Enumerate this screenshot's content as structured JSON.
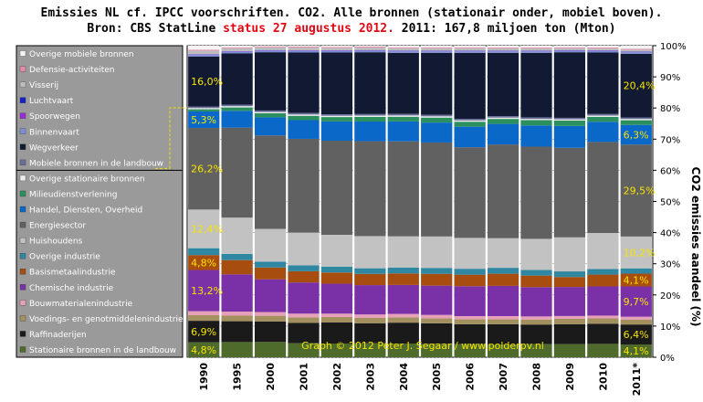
{
  "title": {
    "line1": "Emissies NL cf. IPCC voorschriften. CO2. Alle bronnen (stationair onder, mobiel boven).",
    "line2_prefix": "Bron: CBS StatLine",
    "line2_status": "status 27 augustus 2012.",
    "line2_suffix": "2011: 167,8 miljoen ton (Mton)"
  },
  "chart_data": {
    "type": "bar",
    "stacked": true,
    "normalized": true,
    "categories": [
      "1990",
      "1995",
      "2000",
      "2001",
      "2002",
      "2003",
      "2004",
      "2005",
      "2006",
      "2007",
      "2008",
      "2009",
      "2010",
      "2011*"
    ],
    "ylabel": "CO2 emissies aandeel (%)",
    "ylim": [
      0,
      100
    ],
    "yticks": [
      "0%",
      "10%",
      "20%",
      "30%",
      "40%",
      "50%",
      "60%",
      "70%",
      "80%",
      "90%",
      "100%"
    ],
    "legend_position": "left",
    "watermark": "Graph © 2012 Peter J. Segaar / www.polderpv.nl",
    "series": [
      {
        "name": "Stationaire bronnen in de landbouw",
        "color": "#4e6b2c",
        "values": [
          4.8,
          4.9,
          4.9,
          4.5,
          4.4,
          4.5,
          4.4,
          4.3,
          4.2,
          4.1,
          4.2,
          4.2,
          4.3,
          4.1
        ]
      },
      {
        "name": "Raffinaderijen",
        "color": "#1a1a1a",
        "values": [
          6.9,
          6.7,
          6.6,
          6.5,
          6.8,
          6.4,
          6.7,
          6.6,
          6.4,
          6.5,
          6.3,
          6.4,
          6.5,
          6.4
        ]
      },
      {
        "name": "Voedings- en genotmiddelenindustrie",
        "color": "#a3905f",
        "values": [
          1.8,
          1.8,
          1.8,
          1.8,
          1.7,
          1.7,
          1.7,
          1.6,
          1.6,
          1.6,
          1.6,
          1.7,
          1.7,
          1.6
        ]
      },
      {
        "name": "Bouwmaterialenindustrie",
        "color": "#e6a0b7",
        "values": [
          1.3,
          1.3,
          1.2,
          1.2,
          1.1,
          1.1,
          1.1,
          1.1,
          1.0,
          1.0,
          1.0,
          0.9,
          0.9,
          0.9
        ]
      },
      {
        "name": "Chemische industrie",
        "color": "#7a31a8",
        "values": [
          13.2,
          12.0,
          10.5,
          10.0,
          9.6,
          9.4,
          9.3,
          9.4,
          9.6,
          9.7,
          9.4,
          9.3,
          9.4,
          9.7
        ]
      },
      {
        "name": "Basismetaalindustrie",
        "color": "#a74d0f",
        "values": [
          4.8,
          4.6,
          3.8,
          3.6,
          3.6,
          3.6,
          3.7,
          3.8,
          3.7,
          3.9,
          3.7,
          3.2,
          3.8,
          4.1
        ]
      },
      {
        "name": "Overige industrie",
        "color": "#2f87a2",
        "values": [
          2.2,
          2.0,
          1.9,
          1.9,
          1.9,
          1.8,
          1.9,
          1.9,
          1.9,
          1.9,
          1.8,
          1.8,
          1.8,
          1.7
        ]
      },
      {
        "name": "Huishoudens",
        "color": "#c2c2c2",
        "values": [
          12.4,
          11.7,
          10.5,
          10.5,
          10.2,
          10.3,
          10.0,
          10.1,
          9.9,
          9.5,
          10.0,
          10.9,
          11.6,
          10.2
        ]
      },
      {
        "name": "Energiesector",
        "color": "#616161",
        "values": [
          26.2,
          29.0,
          30.0,
          30.1,
          30.2,
          30.4,
          30.5,
          30.2,
          29.1,
          30.1,
          29.6,
          28.7,
          29.3,
          29.5
        ]
      },
      {
        "name": "Handel, Diensten, Overheid",
        "color": "#0a68c9",
        "values": [
          5.3,
          5.4,
          5.8,
          6.0,
          6.2,
          6.3,
          6.4,
          6.4,
          6.6,
          6.6,
          6.8,
          7.0,
          6.5,
          6.3
        ]
      },
      {
        "name": "Milieudienstverlening",
        "color": "#2b8f5e",
        "values": [
          0.7,
          1.1,
          1.3,
          1.4,
          1.4,
          1.5,
          1.5,
          1.6,
          1.6,
          1.6,
          1.7,
          1.7,
          1.6,
          1.5
        ]
      },
      {
        "name": "Overige stationaire bronnen",
        "color": "#ececec",
        "values": [
          0.4,
          0.4,
          0.4,
          0.4,
          0.4,
          0.4,
          0.4,
          0.4,
          0.4,
          0.4,
          0.4,
          0.4,
          0.4,
          0.4
        ]
      },
      {
        "name": "Mobiele bronnen in de landbouw",
        "color": "#6a6f9a",
        "values": [
          0.5,
          0.5,
          0.5,
          0.5,
          0.5,
          0.5,
          0.5,
          0.5,
          0.5,
          0.5,
          0.5,
          0.5,
          0.5,
          0.5
        ]
      },
      {
        "name": "Wegverkeer",
        "color": "#121a33",
        "values": [
          16.0,
          16.5,
          18.7,
          19.4,
          19.8,
          19.8,
          19.6,
          19.9,
          21.2,
          20.3,
          20.7,
          21.0,
          19.8,
          20.4
        ]
      },
      {
        "name": "Binnenvaart",
        "color": "#7c8fd4",
        "values": [
          0.5,
          0.5,
          0.5,
          0.5,
          0.5,
          0.5,
          0.5,
          0.5,
          0.5,
          0.5,
          0.5,
          0.5,
          0.5,
          0.5
        ]
      },
      {
        "name": "Spoorwegen",
        "color": "#9a2bd8",
        "values": [
          0.1,
          0.1,
          0.1,
          0.1,
          0.1,
          0.1,
          0.1,
          0.1,
          0.1,
          0.1,
          0.1,
          0.1,
          0.1,
          0.1
        ]
      },
      {
        "name": "Luchtvaart",
        "color": "#1521c2",
        "values": [
          0.1,
          0.1,
          0.1,
          0.1,
          0.1,
          0.1,
          0.1,
          0.1,
          0.1,
          0.1,
          0.1,
          0.1,
          0.1,
          0.1
        ]
      },
      {
        "name": "Visserij",
        "color": "#bdbdbd",
        "values": [
          1.2,
          1.0,
          0.9,
          0.9,
          0.8,
          0.8,
          0.8,
          0.8,
          0.8,
          0.7,
          0.7,
          0.6,
          0.6,
          0.6
        ]
      },
      {
        "name": "Defensie-activiteiten",
        "color": "#e28aa8",
        "values": [
          0.3,
          0.3,
          0.3,
          0.3,
          0.3,
          0.3,
          0.3,
          0.3,
          0.3,
          0.3,
          0.3,
          0.3,
          0.3,
          0.3
        ]
      },
      {
        "name": "Overige mobiele bronnen",
        "color": "#f4f4f4",
        "values": [
          1.3,
          0.5,
          0.2,
          0.3,
          0.4,
          0.3,
          0.5,
          0.5,
          0.5,
          0.6,
          0.6,
          0.5,
          0.6,
          1.0
        ]
      }
    ],
    "annotations": [
      {
        "category": "1990",
        "series": "Stationaire bronnen in de landbouw",
        "label": "4,8%"
      },
      {
        "category": "1990",
        "series": "Raffinaderijen",
        "label": "6,9%"
      },
      {
        "category": "1990",
        "series": "Chemische industrie",
        "label": "13,2%"
      },
      {
        "category": "1990",
        "series": "Basismetaalindustrie",
        "label": "4,8%"
      },
      {
        "category": "1990",
        "series": "Huishoudens",
        "label": "12,4%"
      },
      {
        "category": "1990",
        "series": "Energiesector",
        "label": "26,2%"
      },
      {
        "category": "1990",
        "series": "Handel, Diensten, Overheid",
        "label": "5,3%"
      },
      {
        "category": "1990",
        "series": "Wegverkeer",
        "label": "16,0%"
      },
      {
        "category": "2011*",
        "series": "Stationaire bronnen in de landbouw",
        "label": "4,1%"
      },
      {
        "category": "2011*",
        "series": "Raffinaderijen",
        "label": "6,4%"
      },
      {
        "category": "2011*",
        "series": "Chemische industrie",
        "label": "9,7%"
      },
      {
        "category": "2011*",
        "series": "Basismetaalindustrie",
        "label": "4,1%"
      },
      {
        "category": "2011*",
        "series": "Huishoudens",
        "label": "10,2%"
      },
      {
        "category": "2011*",
        "series": "Energiesector",
        "label": "29,5%"
      },
      {
        "category": "2011*",
        "series": "Handel, Diensten, Overheid",
        "label": "6,3%"
      },
      {
        "category": "2011*",
        "series": "Wegverkeer",
        "label": "20,4%"
      }
    ]
  }
}
